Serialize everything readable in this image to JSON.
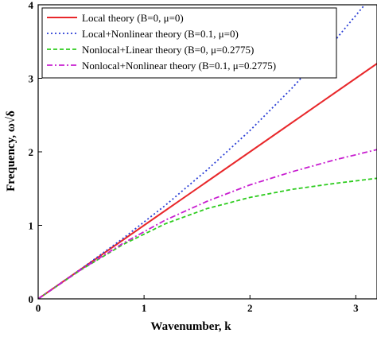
{
  "chart_data": {
    "type": "line",
    "xlabel": "Wavenumber, k",
    "ylabel": "Frequency, ω√δ",
    "xlim": [
      0,
      3.2
    ],
    "ylim": [
      0,
      4
    ],
    "xticks": [
      {
        "value": 0,
        "label": "0"
      },
      {
        "value": 1,
        "label": "1"
      },
      {
        "value": 2,
        "label": "2"
      },
      {
        "value": 3,
        "label": "3"
      }
    ],
    "yticks": [
      {
        "value": 0,
        "label": "0"
      },
      {
        "value": 1,
        "label": "1"
      },
      {
        "value": 2,
        "label": "2"
      },
      {
        "value": 3,
        "label": "3"
      },
      {
        "value": 4,
        "label": "4"
      }
    ],
    "grid": false,
    "legend_position": "top-left",
    "series": [
      {
        "name": "Local theory (B=0, μ=0)",
        "color": "#e8282b",
        "style": "solid",
        "x": [
          0,
          0.4,
          0.8,
          1.2,
          1.6,
          2.0,
          2.4,
          2.8,
          3.2
        ],
        "y": [
          0,
          0.4,
          0.8,
          1.2,
          1.6,
          2.0,
          2.4,
          2.8,
          3.2
        ]
      },
      {
        "name": "Local+Nonlinear theory (B=0.1, μ=0)",
        "color": "#2b3fd6",
        "style": "dotted",
        "x": [
          0,
          0.4,
          0.8,
          1.2,
          1.6,
          2.0,
          2.4,
          2.8,
          3.2
        ],
        "y": [
          0,
          0.402,
          0.82,
          1.27,
          1.76,
          2.29,
          2.87,
          3.51,
          4.2
        ]
      },
      {
        "name": "Nonlocal+Linear theory (B=0, μ=0.2775)",
        "color": "#2ecc1f",
        "style": "dashed",
        "x": [
          0,
          0.4,
          0.8,
          1.2,
          1.6,
          2.0,
          2.4,
          2.8,
          3.2
        ],
        "y": [
          0,
          0.391,
          0.738,
          1.02,
          1.23,
          1.38,
          1.49,
          1.57,
          1.64
        ]
      },
      {
        "name": "Nonlocal+Nonlinear theory (B=0.1, μ=0.2775)",
        "color": "#c81ed0",
        "style": "dashdot",
        "x": [
          0,
          0.4,
          0.8,
          1.2,
          1.6,
          2.0,
          2.4,
          2.8,
          3.2
        ],
        "y": [
          0,
          0.393,
          0.755,
          1.07,
          1.33,
          1.55,
          1.73,
          1.89,
          2.03
        ]
      }
    ]
  }
}
